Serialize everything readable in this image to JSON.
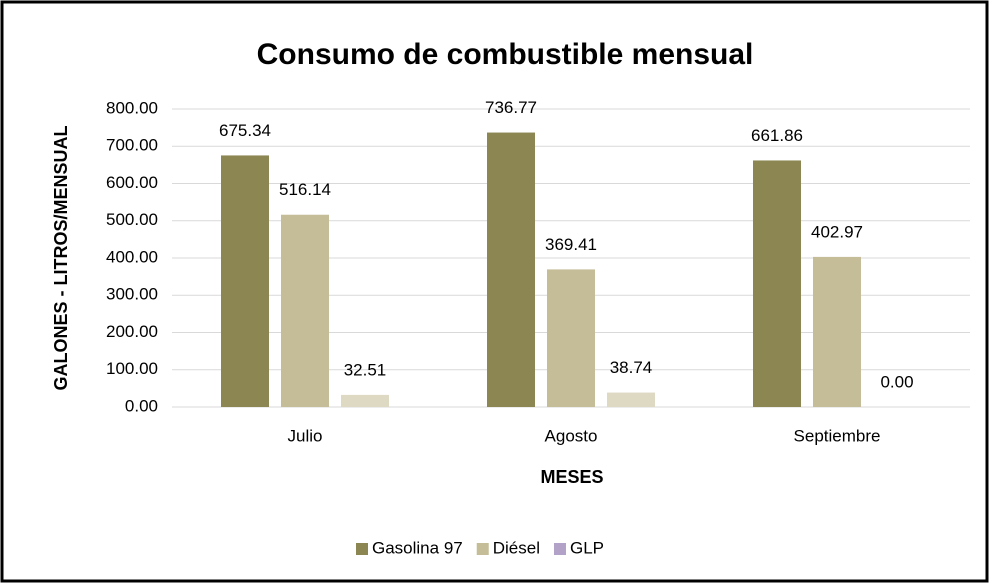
{
  "chart_data": {
    "type": "bar",
    "title": "Consumo de combustible mensual",
    "xlabel": "MESES",
    "ylabel": "GALONES - LITROS/MENSUAL",
    "categories": [
      "Julio",
      "Agosto",
      "Septiembre"
    ],
    "series": [
      {
        "name": "Gasolina 97",
        "color": "#8c8652",
        "values": [
          675.34,
          736.77,
          661.86
        ]
      },
      {
        "name": "Diésel",
        "color": "#c4bd97",
        "values": [
          516.14,
          369.41,
          402.97
        ]
      },
      {
        "name": "GLP",
        "color": "#ddd9c3",
        "legend_color": "#b3a2c7",
        "values": [
          32.51,
          38.74,
          0
        ],
        "value_labels": [
          "32.51",
          "38.74",
          "0.00"
        ]
      }
    ],
    "ylim": [
      0,
      800
    ],
    "yticks": [
      {
        "value": 0,
        "label": "0.00"
      },
      {
        "value": 100,
        "label": "100.00"
      },
      {
        "value": 200,
        "label": "200.00"
      },
      {
        "value": 300,
        "label": "300.00"
      },
      {
        "value": 400,
        "label": "400.00"
      },
      {
        "value": 500,
        "label": "500.00"
      },
      {
        "value": 600,
        "label": "600.00"
      },
      {
        "value": 700,
        "label": "700.00"
      },
      {
        "value": 800,
        "label": "800.00"
      }
    ],
    "grid": true,
    "legend": "bottom"
  }
}
